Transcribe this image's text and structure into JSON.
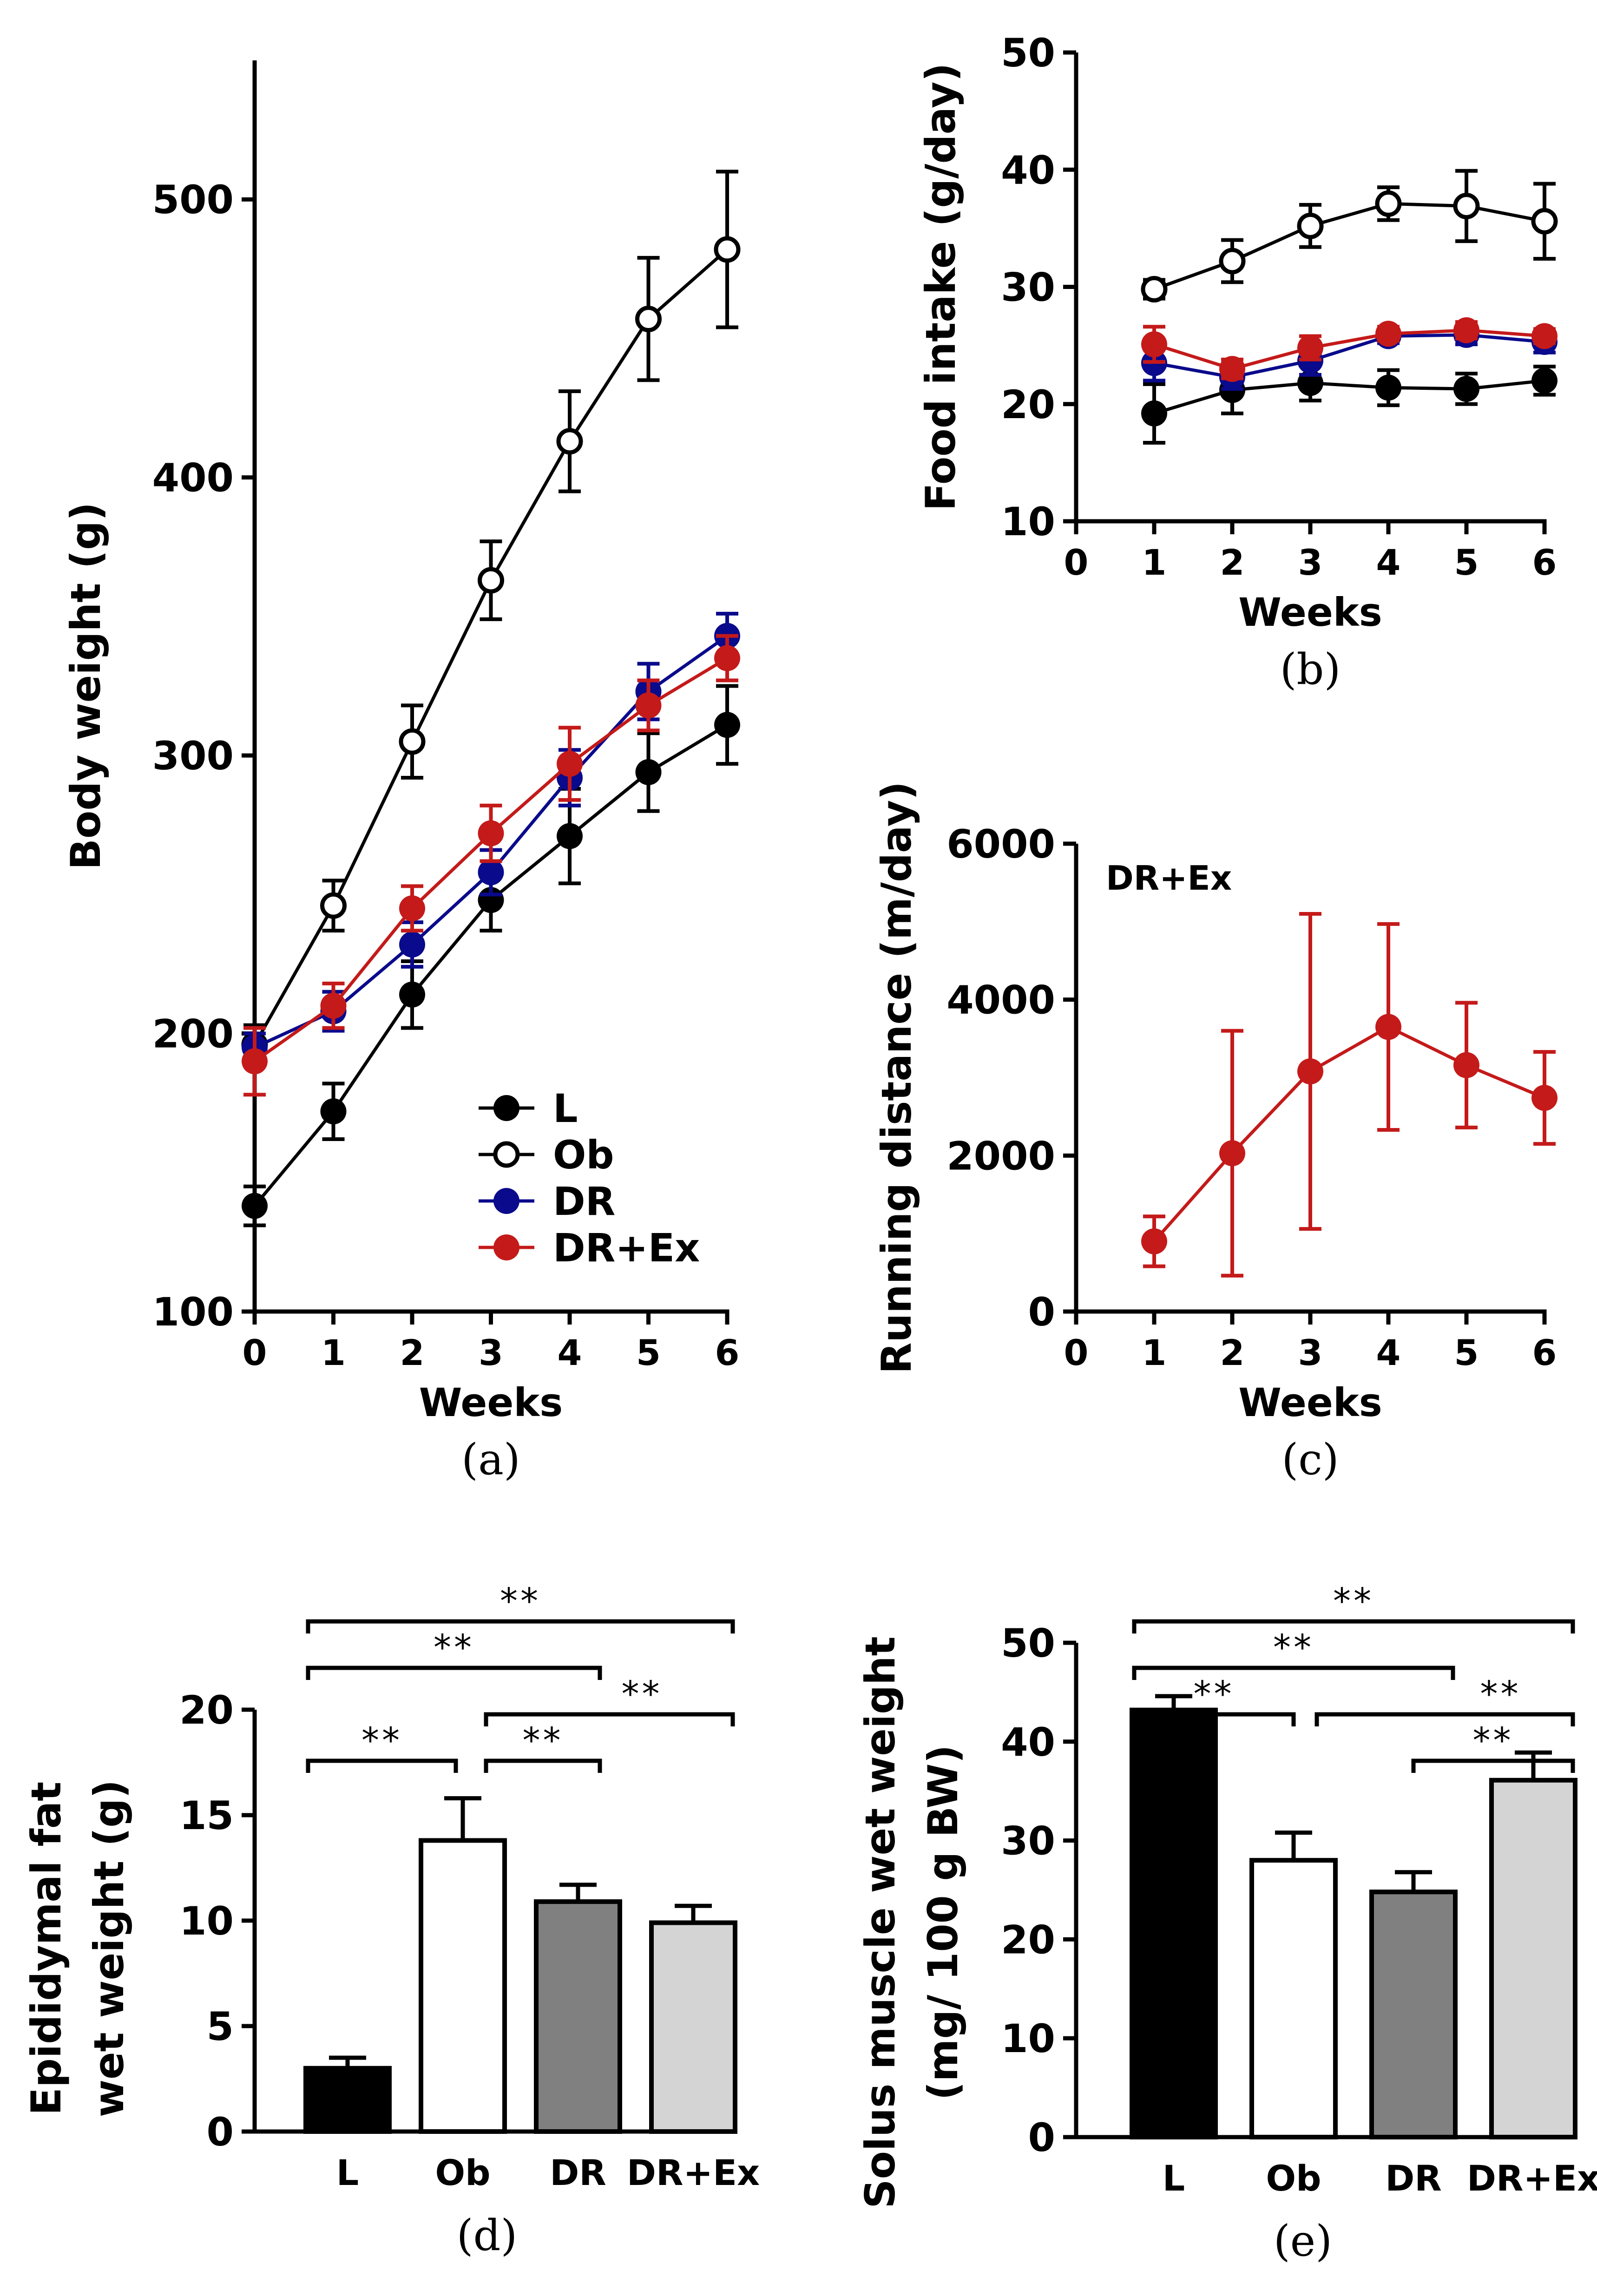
{
  "chart_data": [
    {
      "id": "a",
      "type": "line",
      "panel_label": "(a)",
      "xlabel": "Weeks",
      "ylabel": "Body weight (g)",
      "x": [
        0,
        1,
        2,
        3,
        4,
        5,
        6
      ],
      "xlim": [
        0,
        6
      ],
      "xticks": [
        "0",
        "1",
        "2",
        "3",
        "4",
        "5",
        "6"
      ],
      "ylim": [
        100,
        550
      ],
      "yticks": [
        "100",
        "200",
        "300",
        "400",
        "500"
      ],
      "legend": "bottom-right",
      "series": [
        {
          "name": "L",
          "color": "#000000",
          "marker": "filled",
          "values": [
            138,
            172,
            214,
            248,
            271,
            294,
            311
          ],
          "errors": [
            7,
            10,
            12,
            11,
            17,
            14,
            14
          ]
        },
        {
          "name": "Ob",
          "color": "#000000",
          "marker": "open",
          "values": [
            196,
            246,
            305,
            363,
            413,
            457,
            482
          ],
          "errors": [
            7,
            9,
            13,
            14,
            18,
            22,
            28
          ]
        },
        {
          "name": "DR",
          "color": "#0a0a8c",
          "marker": "filled",
          "values": [
            195,
            208,
            232,
            258,
            292,
            323,
            343
          ],
          "errors": [
            5,
            7,
            8,
            8,
            10,
            10,
            8
          ]
        },
        {
          "name": "DR+Ex",
          "color": "#c41a1a",
          "marker": "filled",
          "values": [
            190,
            210,
            245,
            272,
            297,
            318,
            335
          ],
          "errors": [
            12,
            8,
            8,
            10,
            13,
            9,
            8
          ]
        }
      ]
    },
    {
      "id": "b",
      "type": "line",
      "panel_label": "(b)",
      "xlabel": "Weeks",
      "ylabel": "Food intake  (g/day)",
      "x": [
        1,
        2,
        3,
        4,
        5,
        6
      ],
      "xlim": [
        0,
        6
      ],
      "xticks": [
        "0",
        "1",
        "2",
        "3",
        "4",
        "5",
        "6"
      ],
      "ylim": [
        10,
        50
      ],
      "yticks": [
        "10",
        "20",
        "30",
        "40",
        "50"
      ],
      "series": [
        {
          "name": "L",
          "color": "#000000",
          "marker": "filled",
          "values": [
            19.2,
            21.2,
            21.8,
            21.4,
            21.3,
            22.0
          ],
          "errors": [
            2.5,
            2.0,
            1.5,
            1.5,
            1.3,
            1.2
          ]
        },
        {
          "name": "Ob",
          "color": "#000000",
          "marker": "open",
          "values": [
            29.8,
            32.2,
            35.2,
            37.1,
            36.9,
            35.6
          ],
          "errors": [
            0.8,
            1.8,
            1.8,
            1.4,
            3.0,
            3.2
          ]
        },
        {
          "name": "DR",
          "color": "#0a0a8c",
          "marker": "filled",
          "values": [
            23.5,
            22.3,
            23.7,
            25.8,
            25.9,
            25.3
          ],
          "errors": [
            1.5,
            1.0,
            1.2,
            0.6,
            0.8,
            0.9
          ]
        },
        {
          "name": "DR+Ex",
          "color": "#c41a1a",
          "marker": "filled",
          "values": [
            25.1,
            23.0,
            24.8,
            26.0,
            26.3,
            25.8
          ],
          "errors": [
            1.5,
            0.8,
            1.0,
            0.6,
            0.7,
            0.6
          ]
        }
      ]
    },
    {
      "id": "c",
      "type": "line",
      "panel_label": "(c)",
      "annotation": "DR+Ex",
      "xlabel": "Weeks",
      "ylabel": "Running distance (m/day)",
      "x": [
        1,
        2,
        3,
        4,
        5,
        6
      ],
      "xlim": [
        0,
        6
      ],
      "xticks": [
        "0",
        "1",
        "2",
        "3",
        "4",
        "5",
        "6"
      ],
      "ylim": [
        0,
        6000
      ],
      "yticks": [
        "0",
        "2000",
        "4000",
        "6000"
      ],
      "series": [
        {
          "name": "DR+Ex",
          "color": "#c41a1a",
          "marker": "filled",
          "values": [
            900,
            2030,
            3080,
            3650,
            3160,
            2740
          ],
          "errors": [
            320,
            1570,
            2020,
            1320,
            800,
            590
          ]
        }
      ]
    },
    {
      "id": "d",
      "type": "bar",
      "panel_label": "(d)",
      "ylabel_lines": [
        "Epididymal fat",
        "wet weight (g)"
      ],
      "categories": [
        "L",
        "Ob",
        "DR",
        "DR+Ex"
      ],
      "values": [
        3.0,
        13.8,
        10.9,
        9.9
      ],
      "errors": [
        0.5,
        2.0,
        0.8,
        0.8
      ],
      "colors": [
        "#000000",
        "#ffffff",
        "#808080",
        "#d4d4d4"
      ],
      "ylim": [
        0,
        20
      ],
      "yticks": [
        "0",
        "5",
        "10",
        "15",
        "20"
      ],
      "significance": [
        {
          "from": 0,
          "to": 3,
          "label": "**"
        },
        {
          "from": 0,
          "to": 2,
          "label": "**"
        },
        {
          "from": 1,
          "to": 3,
          "label": "**"
        },
        {
          "from": 0,
          "to": 1,
          "label": "**"
        },
        {
          "from": 1,
          "to": 2,
          "label": "**"
        }
      ]
    },
    {
      "id": "e",
      "type": "bar",
      "panel_label": "(e)",
      "ylabel_lines": [
        "Solus muscle wet weight",
        "(mg/ 100 g BW)"
      ],
      "categories": [
        "L",
        "Ob",
        "DR",
        "DR+Ex"
      ],
      "values": [
        43.2,
        28.0,
        24.8,
        36.1
      ],
      "errors": [
        1.4,
        2.8,
        2.0,
        2.8
      ],
      "colors": [
        "#000000",
        "#ffffff",
        "#808080",
        "#d4d4d4"
      ],
      "ylim": [
        0,
        50
      ],
      "yticks": [
        "0",
        "10",
        "20",
        "30",
        "40",
        "50"
      ],
      "significance": [
        {
          "from": 0,
          "to": 3,
          "label": "**"
        },
        {
          "from": 0,
          "to": 2,
          "label": "**"
        },
        {
          "from": 0,
          "to": 1,
          "label": "**"
        },
        {
          "from": 1,
          "to": 3,
          "label": "**"
        },
        {
          "from": 2,
          "to": 3,
          "label": "**"
        }
      ]
    }
  ]
}
